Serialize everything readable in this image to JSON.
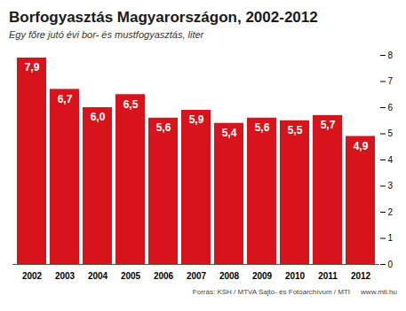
{
  "chart_data": {
    "type": "bar",
    "title": "Borfogyasztás Magyarországon, 2002-2012",
    "subtitle": "Egy főre jutó évi bor- és mustfogyasztás, liter",
    "source": "Forrás: KSH / MTVA Sajtó- és Fotóarchívum / MTI",
    "annotations": [
      "www.mti.hu"
    ],
    "categories": [
      "2002",
      "2003",
      "2004",
      "2005",
      "2006",
      "2007",
      "2008",
      "2009",
      "2010",
      "2011",
      "2012"
    ],
    "values": [
      7.9,
      6.7,
      6.0,
      6.5,
      5.6,
      5.9,
      5.4,
      5.6,
      5.5,
      5.7,
      4.9
    ],
    "value_labels": [
      "7,9",
      "6,7",
      "6,0",
      "6,5",
      "5,6",
      "5,9",
      "5,4",
      "5,6",
      "5,5",
      "5,7",
      "4,9"
    ],
    "data_labels": true,
    "color": "#d7141c",
    "ylim": [
      0,
      8
    ],
    "yticks": [
      0,
      1,
      2,
      3,
      4,
      5,
      6,
      7,
      8
    ],
    "grid": false
  }
}
